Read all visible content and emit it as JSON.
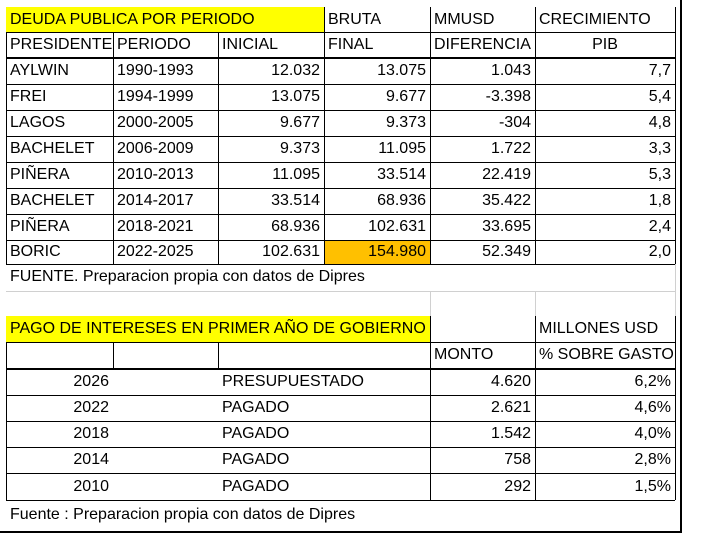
{
  "table1": {
    "title": "DEUDA PUBLICA POR PERIODO",
    "h1_bruta": "BRUTA",
    "h1_mmusd": "MMUSD",
    "h1_crec": "CRECIMIENTO",
    "h2": [
      "PRESIDENTE",
      "PERIODO",
      "INICIAL",
      "FINAL",
      "DIFERENCIA",
      "PIB"
    ],
    "rows": [
      [
        "AYLWIN",
        "1990-1993",
        "12.032",
        "13.075",
        "1.043",
        "7,7"
      ],
      [
        "FREI",
        "1994-1999",
        "13.075",
        "9.677",
        "-3.398",
        "5,4"
      ],
      [
        "LAGOS",
        "2000-2005",
        "9.677",
        "9.373",
        "-304",
        "4,8"
      ],
      [
        "BACHELET",
        "2006-2009",
        "9.373",
        "11.095",
        "1.722",
        "3,3"
      ],
      [
        "PIÑERA",
        "2010-2013",
        "11.095",
        "33.514",
        "22.419",
        "5,3"
      ],
      [
        "BACHELET",
        "2014-2017",
        "33.514",
        "68.936",
        "35.422",
        "1,8"
      ],
      [
        "PIÑERA",
        "2018-2021",
        "68.936",
        "102.631",
        "33.695",
        "2,4"
      ],
      [
        "BORIC",
        "2022-2025",
        "102.631",
        "154.980",
        "52.349",
        "2,0"
      ]
    ],
    "source": "FUENTE. Preparacion propia con datos de Dipres",
    "highlight_color": "#ffc000"
  },
  "table2": {
    "title": "PAGO DE INTERESES EN PRIMER AÑO DE GOBIERNO",
    "units": "MILLONES USD",
    "h_monto": "MONTO",
    "h_pct": "% SOBRE GASTO",
    "rows": [
      [
        "2026",
        "PRESUPUESTADO",
        "4.620",
        "6,2%"
      ],
      [
        "2022",
        "PAGADO",
        "2.621",
        "4,6%"
      ],
      [
        "2018",
        "PAGADO",
        "1.542",
        "4,0%"
      ],
      [
        "2014",
        "PAGADO",
        "758",
        "2,8%"
      ],
      [
        "2010",
        "PAGADO",
        "292",
        "1,5%"
      ]
    ],
    "source": "Fuente : Preparacion propia con datos de Dipres"
  },
  "title_color": "#ffff00"
}
